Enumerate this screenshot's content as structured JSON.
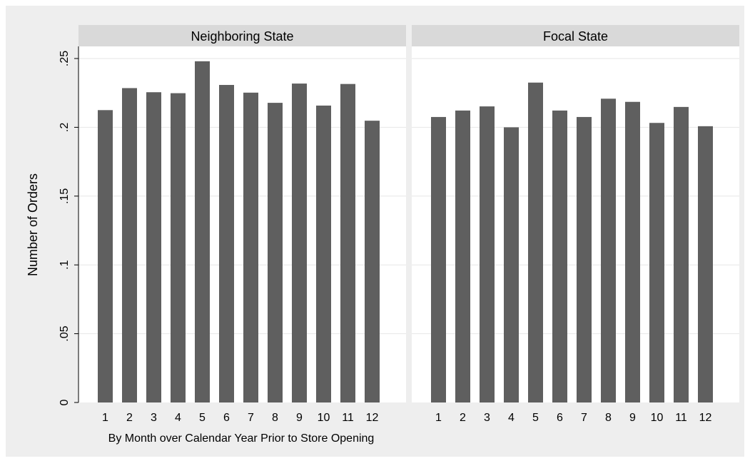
{
  "chart_data": {
    "type": "bar",
    "ylabel": "Number of Orders",
    "xlabel": "By Month over Calendar Year Prior to Store Opening",
    "ylim": [
      0,
      0.25
    ],
    "yticks": [
      0,
      0.05,
      0.1,
      0.15,
      0.2,
      0.25
    ],
    "ytick_labels": [
      "0",
      ".05",
      ".1",
      ".15",
      ".2",
      ".25"
    ],
    "categories": [
      "1",
      "2",
      "3",
      "4",
      "5",
      "6",
      "7",
      "8",
      "9",
      "10",
      "11",
      "12"
    ],
    "grid": true,
    "bar_color": "#5f5f5f",
    "panel_header_color": "#d9d9d9",
    "background_color": "#eeeeee",
    "panels": [
      {
        "title": "Neighboring State",
        "values": [
          0.2125,
          0.2285,
          0.2255,
          0.2248,
          0.248,
          0.2308,
          0.2252,
          0.2178,
          0.2318,
          0.2158,
          0.2315,
          0.2048
        ]
      },
      {
        "title": "Focal State",
        "values": [
          0.2075,
          0.2122,
          0.2152,
          0.2,
          0.2325,
          0.2122,
          0.2075,
          0.2208,
          0.2185,
          0.2032,
          0.2148,
          0.2008
        ]
      }
    ]
  }
}
